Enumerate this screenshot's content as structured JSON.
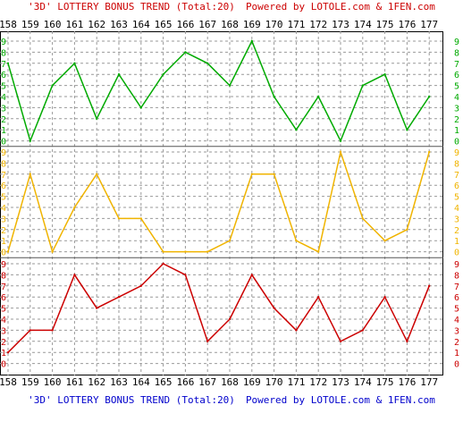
{
  "header": {
    "title": "'3D' LOTTERY BONUS TREND (Total:20)",
    "powered_by": "Powered by LOTOLE.com & 1FEN.com"
  },
  "footer": {
    "title": "'3D' LOTTERY BONUS TREND (Total:20)",
    "powered_by": "Powered by LOTOLE.com & 1FEN.com"
  },
  "chart_data": {
    "type": "line",
    "title": "'3D' LOTTERY BONUS TREND (Total:20)",
    "x": [
      "158",
      "159",
      "160",
      "161",
      "162",
      "163",
      "164",
      "165",
      "166",
      "167",
      "168",
      "169",
      "170",
      "171",
      "172",
      "173",
      "174",
      "175",
      "176",
      "177"
    ],
    "ylim": [
      0,
      9
    ],
    "y_ticks": [
      "0",
      "1",
      "2",
      "3",
      "4",
      "5",
      "6",
      "7",
      "8",
      "9"
    ],
    "grid": true,
    "panels": [
      {
        "color": "#00aa00",
        "values": [
          7,
          0,
          5,
          7,
          2,
          6,
          3,
          6,
          8,
          7,
          5,
          9,
          4,
          1,
          4,
          0,
          5,
          6,
          1,
          4
        ]
      },
      {
        "color": "#f0b400",
        "values": [
          0,
          7,
          0,
          4,
          7,
          3,
          3,
          0,
          0,
          0,
          1,
          7,
          7,
          1,
          0,
          9,
          3,
          1,
          2,
          9
        ]
      },
      {
        "color": "#cc0000",
        "values": [
          1,
          3,
          3,
          8,
          5,
          6,
          7,
          9,
          8,
          2,
          4,
          8,
          5,
          3,
          6,
          2,
          3,
          6,
          2,
          7
        ]
      }
    ]
  }
}
